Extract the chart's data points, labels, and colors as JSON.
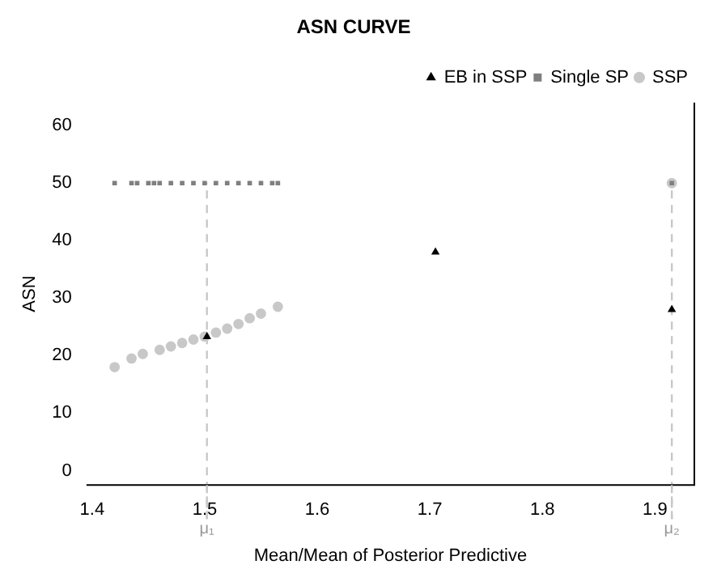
{
  "chart_data": {
    "type": "scatter",
    "title": "ASN CURVE",
    "xlabel": "Mean/Mean of Posterior Predictive",
    "ylabel": "ASN",
    "xlim": [
      1.395,
      1.935
    ],
    "xticks": [
      1.4,
      1.5,
      1.6,
      1.7,
      1.8,
      1.9
    ],
    "ylim": [
      -2.5,
      64
    ],
    "yticks": [
      0,
      10,
      20,
      30,
      40,
      50,
      60
    ],
    "grid": false,
    "legend": "top right",
    "series": [
      {
        "name": "Single SP",
        "color": "#7f7f7f",
        "marker": "square",
        "x": [
          1.42,
          1.435,
          1.44,
          1.45,
          1.455,
          1.46,
          1.47,
          1.48,
          1.49,
          1.5,
          1.51,
          1.52,
          1.53,
          1.54,
          1.55,
          1.56,
          1.565,
          1.915
        ],
        "values": [
          50,
          50,
          50,
          50,
          50,
          50,
          50,
          50,
          50,
          50,
          50,
          50,
          50,
          50,
          50,
          50,
          50,
          50
        ]
      },
      {
        "name": "SSP",
        "color": "#c8c8c8",
        "marker": "circle",
        "x": [
          1.42,
          1.435,
          1.445,
          1.46,
          1.47,
          1.48,
          1.49,
          1.5,
          1.51,
          1.52,
          1.53,
          1.54,
          1.55,
          1.565,
          1.915
        ],
        "values": [
          18,
          19.5,
          20.3,
          21,
          21.6,
          22.2,
          22.8,
          23.3,
          24,
          24.7,
          25.5,
          26.5,
          27.3,
          28.5,
          50
        ]
      },
      {
        "name": "EB in SSP",
        "color": "#000000",
        "marker": "triangle",
        "x": [
          1.502,
          1.705,
          1.915
        ],
        "values": [
          23.3,
          38,
          28
        ]
      }
    ],
    "ref_lines": [
      {
        "axis": "x",
        "value": 1.502,
        "label": "μ₁",
        "color": "#c8c8c8",
        "line_style": "dashed"
      },
      {
        "axis": "x",
        "value": 1.915,
        "label": "μ₂",
        "color": "#c8c8c8",
        "line_style": "dashed"
      }
    ]
  }
}
